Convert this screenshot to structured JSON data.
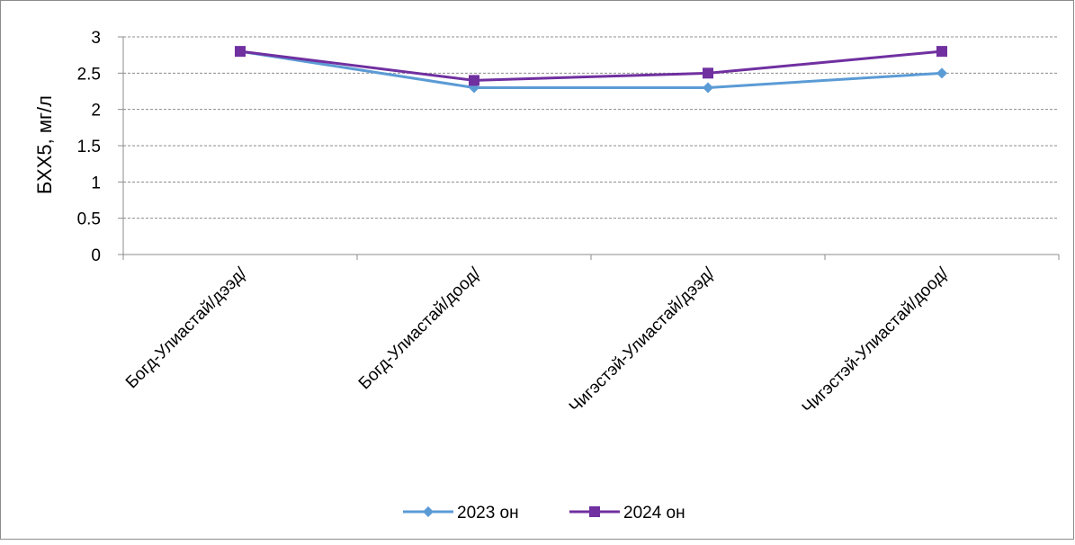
{
  "chart_data": {
    "type": "line",
    "title": "",
    "xlabel": "",
    "ylabel": "БХХ5, мг/л",
    "ylim": [
      0,
      3
    ],
    "yticks": [
      "0",
      "0.5",
      "1",
      "1.5",
      "2",
      "2.5",
      "3"
    ],
    "grid": true,
    "legend_position": "bottom",
    "categories": [
      "Богд-Улиастай/дээд/",
      "Богд-Улиастай/доод/",
      "Чигэстэй-Улиастай/дээд/",
      "Чигэстэй-Улиастай/доод/"
    ],
    "series": [
      {
        "name": "2023 он",
        "values": [
          2.8,
          2.3,
          2.3,
          2.5
        ],
        "color": "#5B9BD5",
        "marker": "diamond"
      },
      {
        "name": "2024 он",
        "values": [
          2.8,
          2.4,
          2.5,
          2.8
        ],
        "color": "#7030A0",
        "marker": "square"
      }
    ]
  }
}
